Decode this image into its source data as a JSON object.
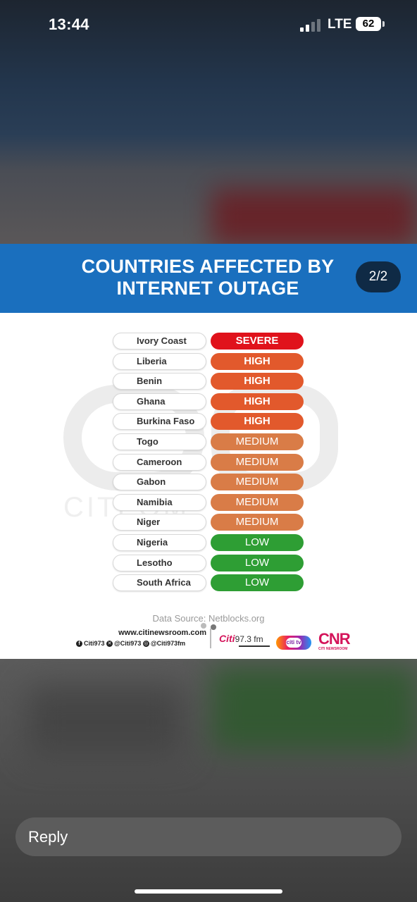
{
  "status_bar": {
    "time": "13:44",
    "network": "LTE",
    "battery": "62"
  },
  "story": {
    "title_line1": "COUNTRIES AFFECTED BY",
    "title_line2": "INTERNET OUTAGE",
    "page_indicator": "2/2",
    "watermark_text": "CITI         OM",
    "rows": [
      {
        "country": "Ivory Coast",
        "level": "SEVERE"
      },
      {
        "country": "Liberia",
        "level": "HIGH"
      },
      {
        "country": "Benin",
        "level": "HIGH"
      },
      {
        "country": "Ghana",
        "level": "HIGH"
      },
      {
        "country": "Burkina Faso",
        "level": "HIGH"
      },
      {
        "country": "Togo",
        "level": "MEDIUM"
      },
      {
        "country": "Cameroon",
        "level": "MEDIUM"
      },
      {
        "country": "Gabon",
        "level": "MEDIUM"
      },
      {
        "country": "Namibia",
        "level": "MEDIUM"
      },
      {
        "country": "Niger",
        "level": "MEDIUM"
      },
      {
        "country": "Nigeria",
        "level": "LOW"
      },
      {
        "country": "Lesotho",
        "level": "LOW"
      },
      {
        "country": "South Africa",
        "level": "LOW"
      }
    ],
    "level_colors": {
      "SEVERE": "#e0121b",
      "HIGH": "#e2592c",
      "MEDIUM": "#d97c47",
      "LOW": "#2e9e34"
    },
    "data_source": "Data Source: Netblocks.org",
    "footer": {
      "website": "www.citinewsroom.com",
      "facebook": "Citi973",
      "x": "@Citi973",
      "instagram": "@Citi973fm",
      "radio_logo": "Citi",
      "radio_freq": "97.3 fm",
      "tv_logo": "citi tv",
      "cnr_logo": "CNR",
      "cnr_sub": "CITI NEWSROOM"
    }
  },
  "reply": {
    "placeholder": "Reply"
  },
  "icons": [
    "signal-icon",
    "battery-icon",
    "facebook-icon",
    "x-icon",
    "instagram-icon"
  ]
}
